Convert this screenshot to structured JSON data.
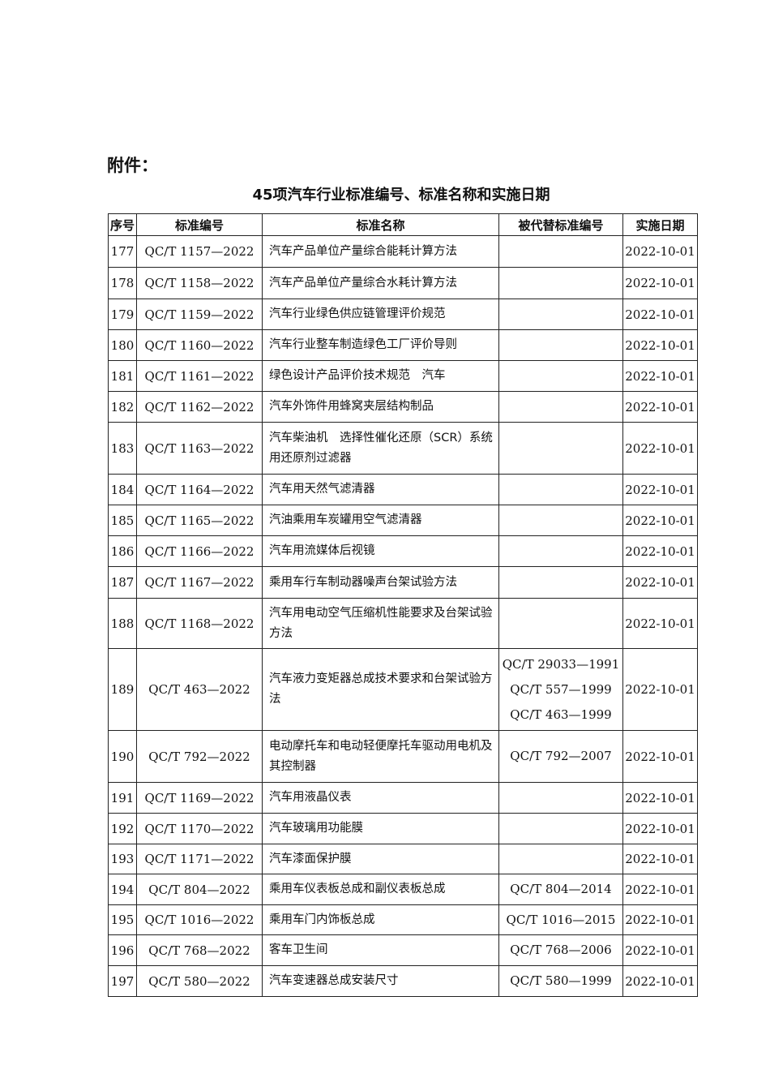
{
  "attachment_label": "附件：",
  "title": "45项汽车行业标准编号、标准名称和实施日期",
  "table": {
    "headers": [
      "序号",
      "标准编号",
      "标准名称",
      "被代替标准编号",
      "实施日期"
    ],
    "rows": [
      {
        "no": "177",
        "code": "QC/T 1157—2022",
        "name": "汽车产品单位产量综合能耗计算方法",
        "replaced": [],
        "date": "2022-10-01"
      },
      {
        "no": "178",
        "code": "QC/T 1158—2022",
        "name": "汽车产品单位产量综合水耗计算方法",
        "replaced": [],
        "date": "2022-10-01"
      },
      {
        "no": "179",
        "code": "QC/T 1159—2022",
        "name": "汽车行业绿色供应链管理评价规范",
        "replaced": [],
        "date": "2022-10-01"
      },
      {
        "no": "180",
        "code": "QC/T 1160—2022",
        "name": "汽车行业整车制造绿色工厂评价导则",
        "replaced": [],
        "date": "2022-10-01"
      },
      {
        "no": "181",
        "code": "QC/T 1161—2022",
        "name": "绿色设计产品评价技术规范　汽车",
        "replaced": [],
        "date": "2022-10-01"
      },
      {
        "no": "182",
        "code": "QC/T 1162—2022",
        "name": "汽车外饰件用蜂窝夹层结构制品",
        "replaced": [],
        "date": "2022-10-01"
      },
      {
        "no": "183",
        "code": "QC/T 1163—2022",
        "name": "汽车柴油机　选择性催化还原（SCR）系统用还原剂过滤器",
        "replaced": [],
        "date": "2022-10-01"
      },
      {
        "no": "184",
        "code": "QC/T 1164—2022",
        "name": "汽车用天然气滤清器",
        "replaced": [],
        "date": "2022-10-01"
      },
      {
        "no": "185",
        "code": "QC/T 1165—2022",
        "name": "汽油乘用车炭罐用空气滤清器",
        "replaced": [],
        "date": "2022-10-01"
      },
      {
        "no": "186",
        "code": "QC/T 1166—2022",
        "name": "汽车用流媒体后视镜",
        "replaced": [],
        "date": "2022-10-01"
      },
      {
        "no": "187",
        "code": "QC/T 1167—2022",
        "name": "乘用车行车制动器噪声台架试验方法",
        "replaced": [],
        "date": "2022-10-01"
      },
      {
        "no": "188",
        "code": "QC/T 1168—2022",
        "name": "汽车用电动空气压缩机性能要求及台架试验方法",
        "replaced": [],
        "date": "2022-10-01"
      },
      {
        "no": "189",
        "code": "QC/T 463—2022",
        "name": "汽车液力变矩器总成技术要求和台架试验方法",
        "replaced": [
          "QC/T 29033—1991",
          "QC/T 557—1999",
          "QC/T 463—1999"
        ],
        "date": "2022-10-01"
      },
      {
        "no": "190",
        "code": "QC/T 792—2022",
        "name": "电动摩托车和电动轻便摩托车驱动用电机及其控制器",
        "replaced": [
          "QC/T 792—2007"
        ],
        "date": "2022-10-01"
      },
      {
        "no": "191",
        "code": "QC/T 1169—2022",
        "name": "汽车用液晶仪表",
        "replaced": [],
        "date": "2022-10-01"
      },
      {
        "no": "192",
        "code": "QC/T 1170—2022",
        "name": "汽车玻璃用功能膜",
        "replaced": [],
        "date": "2022-10-01"
      },
      {
        "no": "193",
        "code": "QC/T 1171—2022",
        "name": "汽车漆面保护膜",
        "replaced": [],
        "date": "2022-10-01"
      },
      {
        "no": "194",
        "code": "QC/T 804—2022",
        "name": "乘用车仪表板总成和副仪表板总成",
        "replaced": [
          "QC/T 804—2014"
        ],
        "date": "2022-10-01"
      },
      {
        "no": "195",
        "code": "QC/T 1016—2022",
        "name": "乘用车门内饰板总成",
        "replaced": [
          "QC/T 1016—2015"
        ],
        "date": "2022-10-01"
      },
      {
        "no": "196",
        "code": "QC/T 768—2022",
        "name": "客车卫生间",
        "replaced": [
          "QC/T 768—2006"
        ],
        "date": "2022-10-01"
      },
      {
        "no": "197",
        "code": "QC/T 580—2022",
        "name": "汽车变速器总成安装尺寸",
        "replaced": [
          "QC/T 580—1999"
        ],
        "date": "2022-10-01"
      }
    ]
  }
}
